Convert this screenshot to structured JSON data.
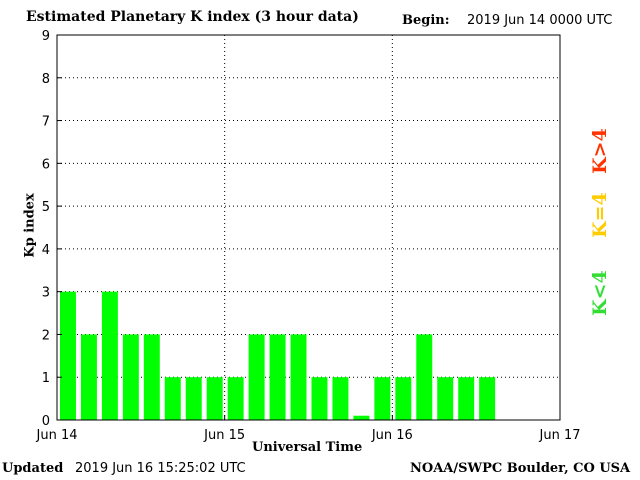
{
  "header": {
    "title": "Estimated Planetary K index (3 hour data)",
    "begin_label": "Begin:",
    "begin_value": "2019 Jun 14 0000 UTC"
  },
  "footer": {
    "updated_label": "Updated",
    "updated_value": "2019 Jun 16 15:25:02 UTC",
    "credit": "NOAA/SWPC Boulder, CO USA"
  },
  "legend": {
    "high": "K>4",
    "eq": "K=4",
    "low": "K<4",
    "colors": {
      "high": "#ff3300",
      "eq": "#ffcc00",
      "low": "#33dd33"
    }
  },
  "chart_data": {
    "type": "bar",
    "title": "Estimated Planetary K index (3 hour data)",
    "xlabel": "Universal Time",
    "ylabel": "Kp index",
    "ylim": [
      0,
      9
    ],
    "yticks": [
      0,
      1,
      2,
      3,
      4,
      5,
      6,
      7,
      8,
      9
    ],
    "xticks": [
      "Jun 14",
      "Jun 15",
      "Jun 16",
      "Jun 17"
    ],
    "intervals_per_day": 8,
    "total_intervals": 24,
    "bar_color": "#00ff00",
    "grid": "dotted",
    "values": [
      3,
      2,
      3,
      2,
      2,
      1,
      1,
      1,
      1,
      2,
      2,
      2,
      1,
      1,
      0.1,
      1,
      1,
      2,
      1,
      1,
      1
    ]
  }
}
